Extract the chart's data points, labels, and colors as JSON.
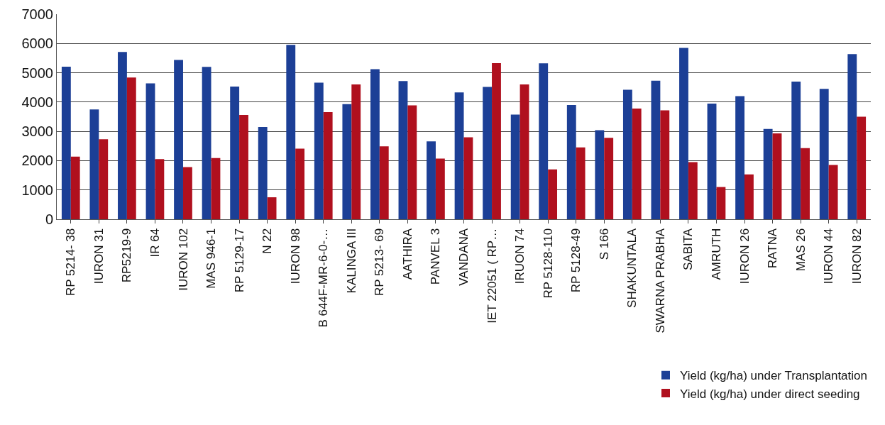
{
  "chart_data": {
    "type": "bar",
    "categories": [
      "RP 5214- 38",
      "IURON 31",
      "RP5219-9",
      "IR 64",
      "IURON 102",
      "MAS 946-1",
      "RP 5129-17",
      "N 22",
      "IURON 98",
      "B 644F-MR-6-0-…",
      "KALINGA III",
      "RP 5213- 69",
      "AATHIRA",
      "PANVEL 3",
      "VANDANA",
      "IET 22051 ( RP…",
      "IRUON 74",
      "RP 5128-110",
      "RP 5128-49",
      "S 166",
      "SHAKUNTALA",
      "SWARNA PRABHA",
      "SABITA",
      "AMRUTH",
      "IURON 26",
      "RATNA",
      "MAS 26",
      "IURON 44",
      "IURON 82"
    ],
    "series": [
      {
        "name": "Yield (kg/ha) under Transplantation",
        "color": "#1c3f96",
        "values": [
          5210,
          3750,
          5710,
          4640,
          5440,
          5200,
          4530,
          3150,
          5950,
          4660,
          3930,
          5120,
          4720,
          2660,
          4330,
          4520,
          3570,
          5320,
          3900,
          3040,
          4420,
          4730,
          5850,
          3950,
          4200,
          3080,
          4700,
          4450,
          5640
        ]
      },
      {
        "name": "Yield (kg/ha) under direct seeding",
        "color": "#b0101e",
        "values": [
          2140,
          2730,
          4840,
          2050,
          1780,
          2090,
          3560,
          750,
          2410,
          3660,
          4600,
          2490,
          3890,
          2070,
          2800,
          5330,
          4600,
          1700,
          2450,
          2780,
          3780,
          3720,
          1950,
          1100,
          1530,
          2930,
          2430,
          1850,
          3500
        ]
      }
    ],
    "ylim": [
      0,
      7000
    ],
    "yticks": [
      0,
      1000,
      2000,
      3000,
      4000,
      5000,
      6000,
      7000
    ],
    "grid": "y",
    "legend": "bottom right"
  }
}
